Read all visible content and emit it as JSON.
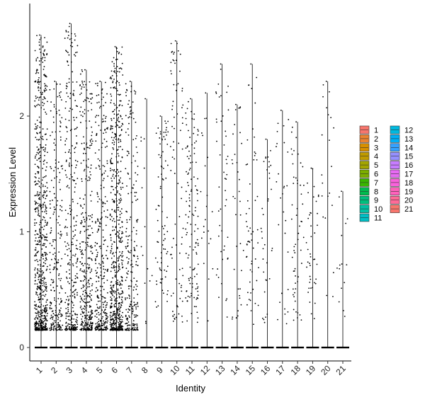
{
  "chart_data": {
    "type": "violin",
    "xlabel": "Identity",
    "ylabel": "Expression Level",
    "categories": [
      "1",
      "2",
      "3",
      "4",
      "5",
      "6",
      "7",
      "8",
      "9",
      "10",
      "11",
      "12",
      "13",
      "14",
      "15",
      "16",
      "17",
      "18",
      "19",
      "20",
      "21"
    ],
    "ylim": [
      -0.1,
      2.9
    ],
    "yticks": [
      0,
      1,
      2
    ],
    "max_values": [
      2.7,
      2.3,
      2.8,
      2.4,
      2.3,
      2.6,
      2.3,
      2.15,
      2.0,
      2.65,
      2.15,
      2.2,
      2.45,
      2.1,
      2.45,
      1.8,
      2.05,
      1.95,
      1.55,
      2.3,
      1.35
    ],
    "point_density": [
      1.0,
      0.35,
      0.45,
      0.55,
      0.45,
      0.9,
      0.35,
      0.02,
      0.12,
      0.12,
      0.18,
      0.03,
      0.07,
      0.05,
      0.08,
      0.05,
      0.04,
      0.08,
      0.06,
      0.03,
      0.02
    ],
    "legend": {
      "position": "right",
      "items": [
        {
          "label": "1",
          "color": "#F8766D"
        },
        {
          "label": "2",
          "color": "#EA8331"
        },
        {
          "label": "3",
          "color": "#D89000"
        },
        {
          "label": "4",
          "color": "#C09B00"
        },
        {
          "label": "5",
          "color": "#A3A500"
        },
        {
          "label": "6",
          "color": "#7CAE00"
        },
        {
          "label": "7",
          "color": "#39B600"
        },
        {
          "label": "8",
          "color": "#00BB4E"
        },
        {
          "label": "9",
          "color": "#00BF7D"
        },
        {
          "label": "10",
          "color": "#00C1A3"
        },
        {
          "label": "11",
          "color": "#00BFC4"
        },
        {
          "label": "12",
          "color": "#00BAE0"
        },
        {
          "label": "13",
          "color": "#00B0F6"
        },
        {
          "label": "14",
          "color": "#35A2FF"
        },
        {
          "label": "15",
          "color": "#9590FF"
        },
        {
          "label": "16",
          "color": "#C77CFF"
        },
        {
          "label": "17",
          "color": "#E76BF3"
        },
        {
          "label": "18",
          "color": "#FA62DB"
        },
        {
          "label": "19",
          "color": "#FF62BC"
        },
        {
          "label": "20",
          "color": "#FF6A98"
        },
        {
          "label": "21",
          "color": "#F8766D"
        }
      ]
    }
  }
}
